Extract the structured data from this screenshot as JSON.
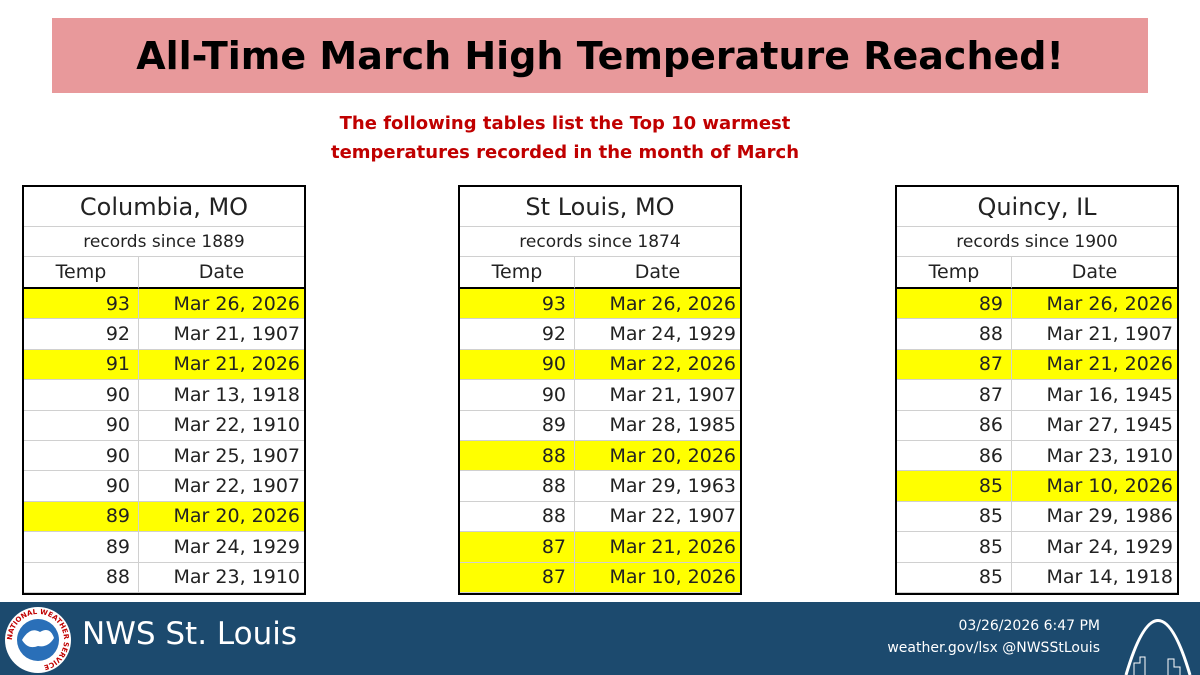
{
  "title": "All-Time March High Temperature Reached!",
  "subtitle": [
    "The following tables list the Top 10 warmest",
    "temperatures recorded in the month of March"
  ],
  "tables": [
    {
      "city": "Columbia, MO",
      "since": "records since 1889",
      "headers": [
        "Temp",
        "Date"
      ],
      "rows": [
        [
          93,
          "Mar 26, 2026"
        ],
        [
          92,
          "Mar 21, 1907"
        ],
        [
          91,
          "Mar 21, 2026"
        ],
        [
          90,
          "Mar 13, 1918"
        ],
        [
          90,
          "Mar 22, 1910"
        ],
        [
          90,
          "Mar 25, 1907"
        ],
        [
          90,
          "Mar 22, 1907"
        ],
        [
          89,
          "Mar 20, 2026"
        ],
        [
          89,
          "Mar 24, 1929"
        ],
        [
          88,
          "Mar 23, 1910"
        ]
      ],
      "highlight": [
        0,
        2,
        7
      ]
    },
    {
      "city": "St Louis, MO",
      "since": "records since 1874",
      "headers": [
        "Temp",
        "Date"
      ],
      "rows": [
        [
          93,
          "Mar 26, 2026"
        ],
        [
          92,
          "Mar 24, 1929"
        ],
        [
          90,
          "Mar 22, 2026"
        ],
        [
          90,
          "Mar 21, 1907"
        ],
        [
          89,
          "Mar 28, 1985"
        ],
        [
          88,
          "Mar 20, 2026"
        ],
        [
          88,
          "Mar 29, 1963"
        ],
        [
          88,
          "Mar 22, 1907"
        ],
        [
          87,
          "Mar 21, 2026"
        ],
        [
          87,
          "Mar 10, 2026"
        ]
      ],
      "highlight": [
        0,
        2,
        5,
        8,
        9
      ]
    },
    {
      "city": "Quincy, IL",
      "since": "records since 1900",
      "headers": [
        "Temp",
        "Date"
      ],
      "rows": [
        [
          89,
          "Mar 26, 2026"
        ],
        [
          88,
          "Mar 21, 1907"
        ],
        [
          87,
          "Mar 21, 2026"
        ],
        [
          87,
          "Mar 16, 1945"
        ],
        [
          86,
          "Mar 27, 1945"
        ],
        [
          86,
          "Mar 23, 1910"
        ],
        [
          85,
          "Mar 10, 2026"
        ],
        [
          85,
          "Mar 29, 1986"
        ],
        [
          85,
          "Mar 24, 1929"
        ],
        [
          85,
          "Mar 14, 1918"
        ]
      ],
      "highlight": [
        0,
        2,
        6
      ]
    }
  ],
  "footer": {
    "office": "NWS St. Louis",
    "timestamp": "03/26/2026 6:47 PM",
    "links": "weather.gov/lsx @NWSStLouis",
    "logo_text": "NATIONAL WEATHER SERVICE"
  }
}
